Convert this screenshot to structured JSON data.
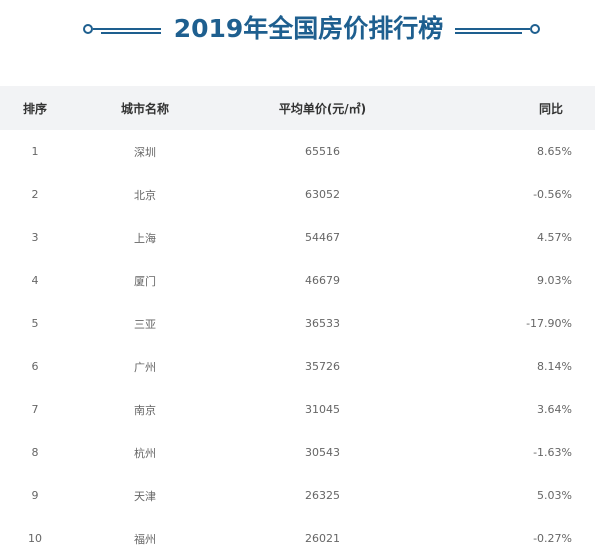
{
  "title": "2019年全国房价排行榜",
  "table": {
    "headers": {
      "rank": "排序",
      "city": "城市名称",
      "price": "平均单价(元/㎡)",
      "yoy": "同比"
    },
    "rows": [
      {
        "rank": "1",
        "city": "深圳",
        "price": "65516",
        "yoy": "8.65%"
      },
      {
        "rank": "2",
        "city": "北京",
        "price": "63052",
        "yoy": "-0.56%"
      },
      {
        "rank": "3",
        "city": "上海",
        "price": "54467",
        "yoy": "4.57%"
      },
      {
        "rank": "4",
        "city": "厦门",
        "price": "46679",
        "yoy": "9.03%"
      },
      {
        "rank": "5",
        "city": "三亚",
        "price": "36533",
        "yoy": "-17.90%"
      },
      {
        "rank": "6",
        "city": "广州",
        "price": "35726",
        "yoy": "8.14%"
      },
      {
        "rank": "7",
        "city": "南京",
        "price": "31045",
        "yoy": "3.64%"
      },
      {
        "rank": "8",
        "city": "杭州",
        "price": "30543",
        "yoy": "-1.63%"
      },
      {
        "rank": "9",
        "city": "天津",
        "price": "26325",
        "yoy": "5.03%"
      },
      {
        "rank": "10",
        "city": "福州",
        "price": "26021",
        "yoy": "-0.27%"
      }
    ]
  },
  "colors": {
    "title": "#1e5f8f",
    "header_bg": "#f2f3f5"
  }
}
